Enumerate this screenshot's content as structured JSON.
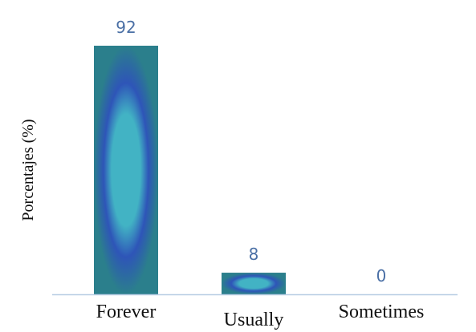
{
  "chart_data": {
    "type": "bar",
    "categories": [
      "Forever",
      "Usually",
      "Sometimes"
    ],
    "values": [
      92,
      8,
      0
    ],
    "data_labels": [
      "92",
      "8",
      "0"
    ],
    "title": "",
    "xlabel": "",
    "ylabel": "Porcentajes (%)",
    "ylim": [
      0,
      92
    ],
    "grid": false,
    "legend": "none",
    "colors": {
      "bar_edge": "#2b7f8c",
      "bar_ring": "#2e55b8",
      "bar_center": "#42b3c4",
      "baseline": "#b8cde3",
      "value_label": "#4a6fa5",
      "text": "#111111"
    }
  }
}
